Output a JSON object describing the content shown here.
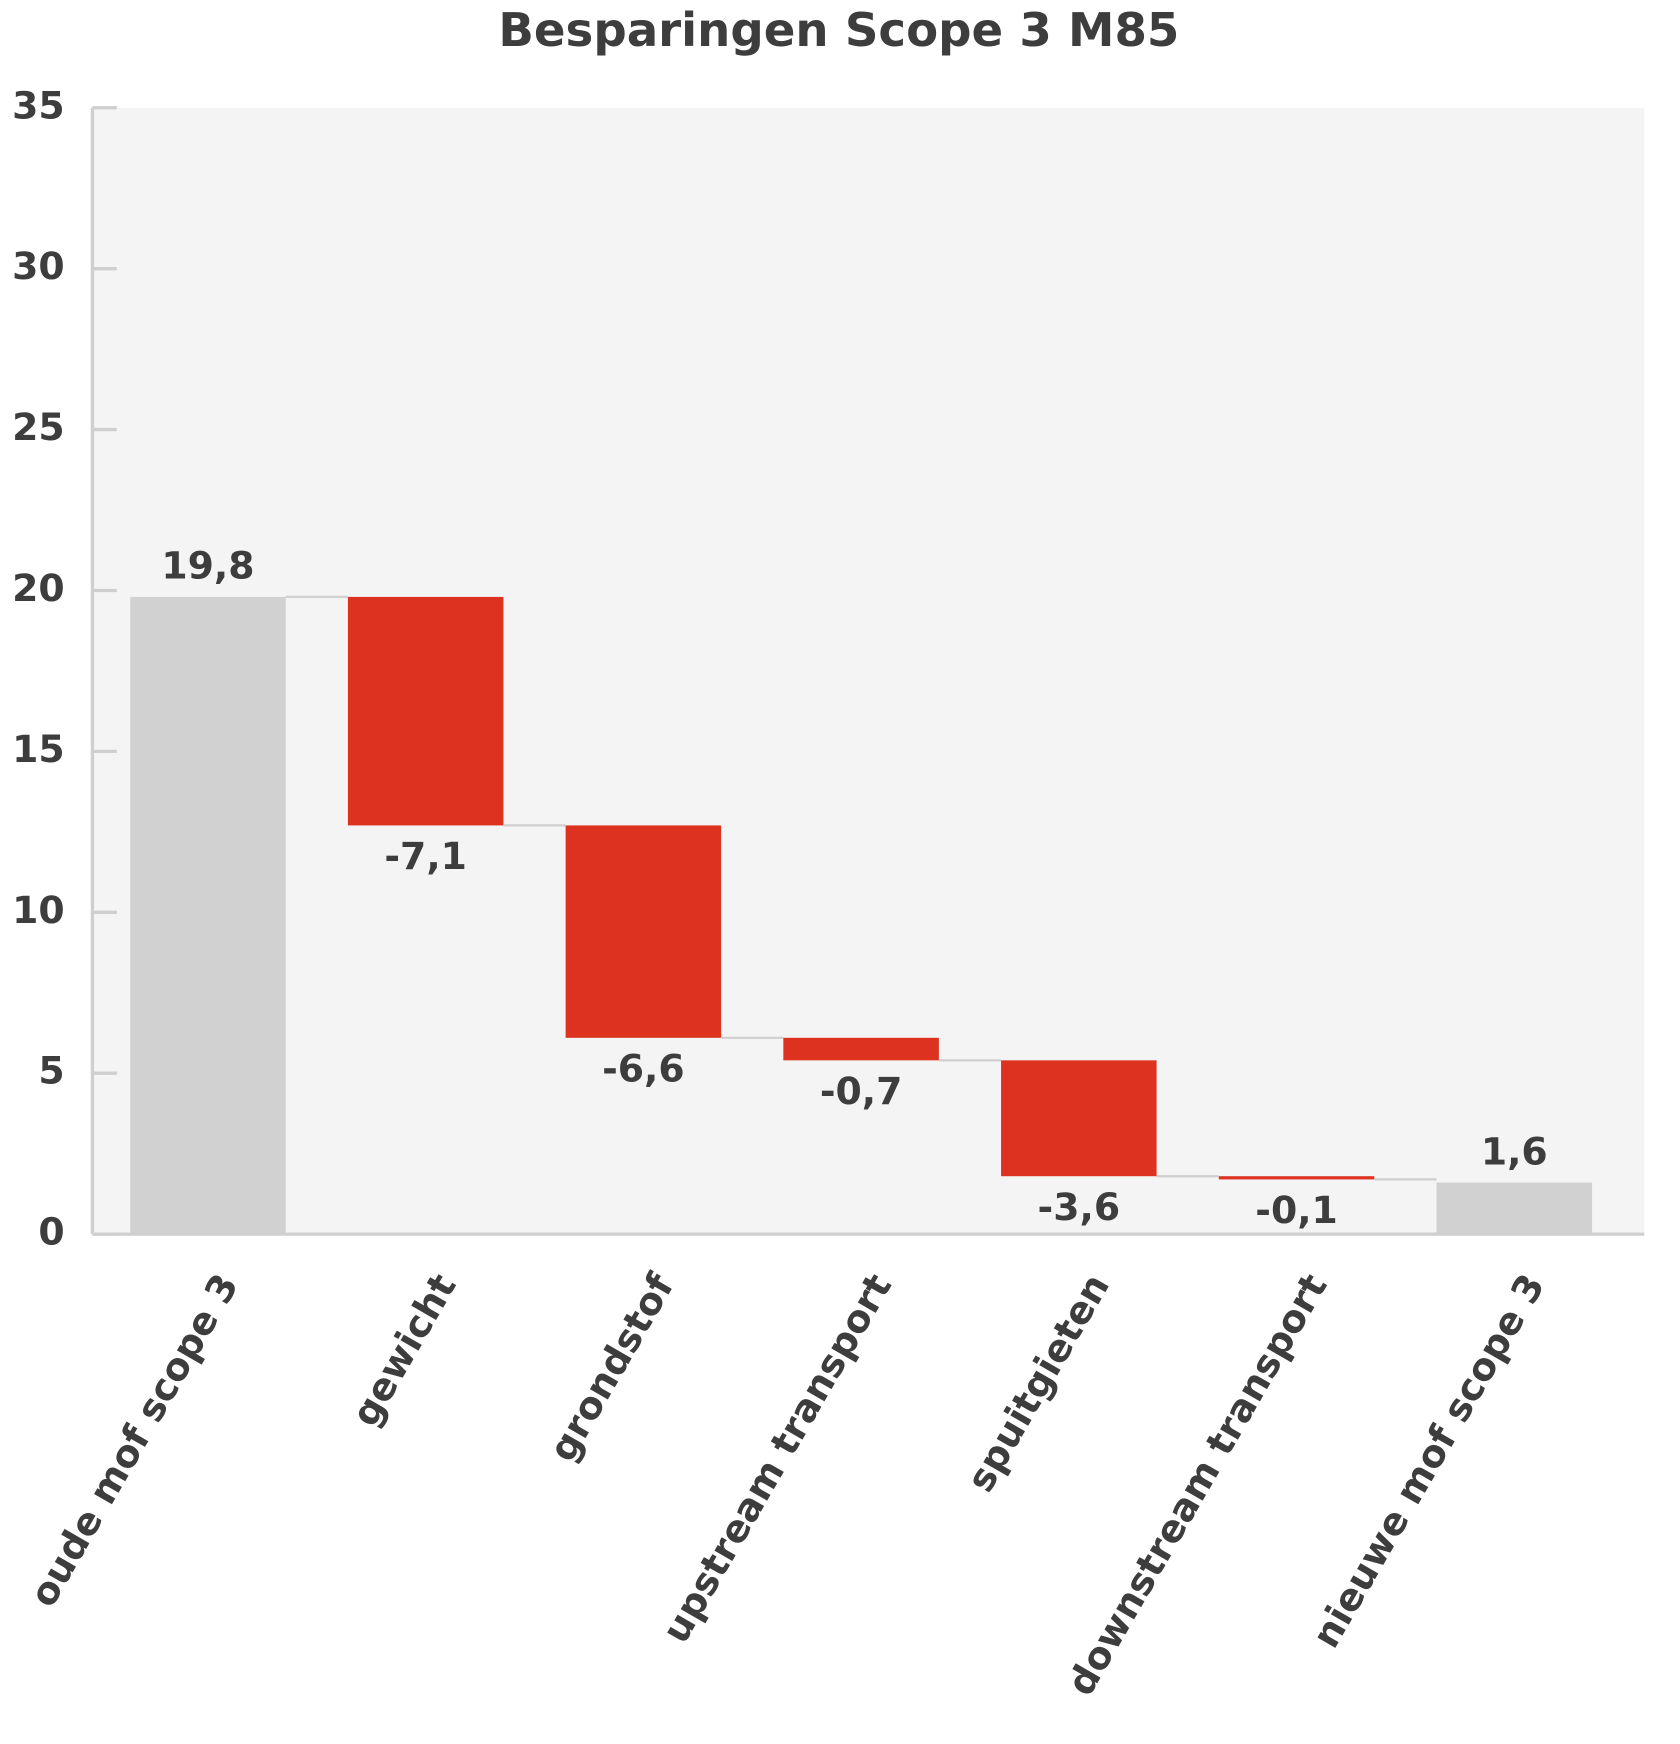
{
  "chart_data": {
    "type": "waterfall",
    "title": "Besparingen Scope 3 M85",
    "categories": [
      "oude mof scope 3",
      "gewicht",
      "grondstof",
      "upstream transport",
      "spuitgieten",
      "downstream transport",
      "nieuwe mof scope 3"
    ],
    "values": [
      19.8,
      -7.1,
      -6.6,
      -0.7,
      -3.6,
      -0.1,
      1.6
    ],
    "value_labels": [
      "19,8",
      "-7,1",
      "-6,6",
      "-0,7",
      "-3,6",
      "-0,1",
      "1,6"
    ],
    "bar_kinds": [
      "total",
      "delta",
      "delta",
      "delta",
      "delta",
      "delta",
      "total"
    ],
    "color": "#dd3220",
    "total_color": "#d0d1d0",
    "ylim": [
      0,
      35
    ],
    "yticks": [
      0,
      5,
      10,
      15,
      20,
      25,
      30,
      35
    ],
    "grid": false
  }
}
